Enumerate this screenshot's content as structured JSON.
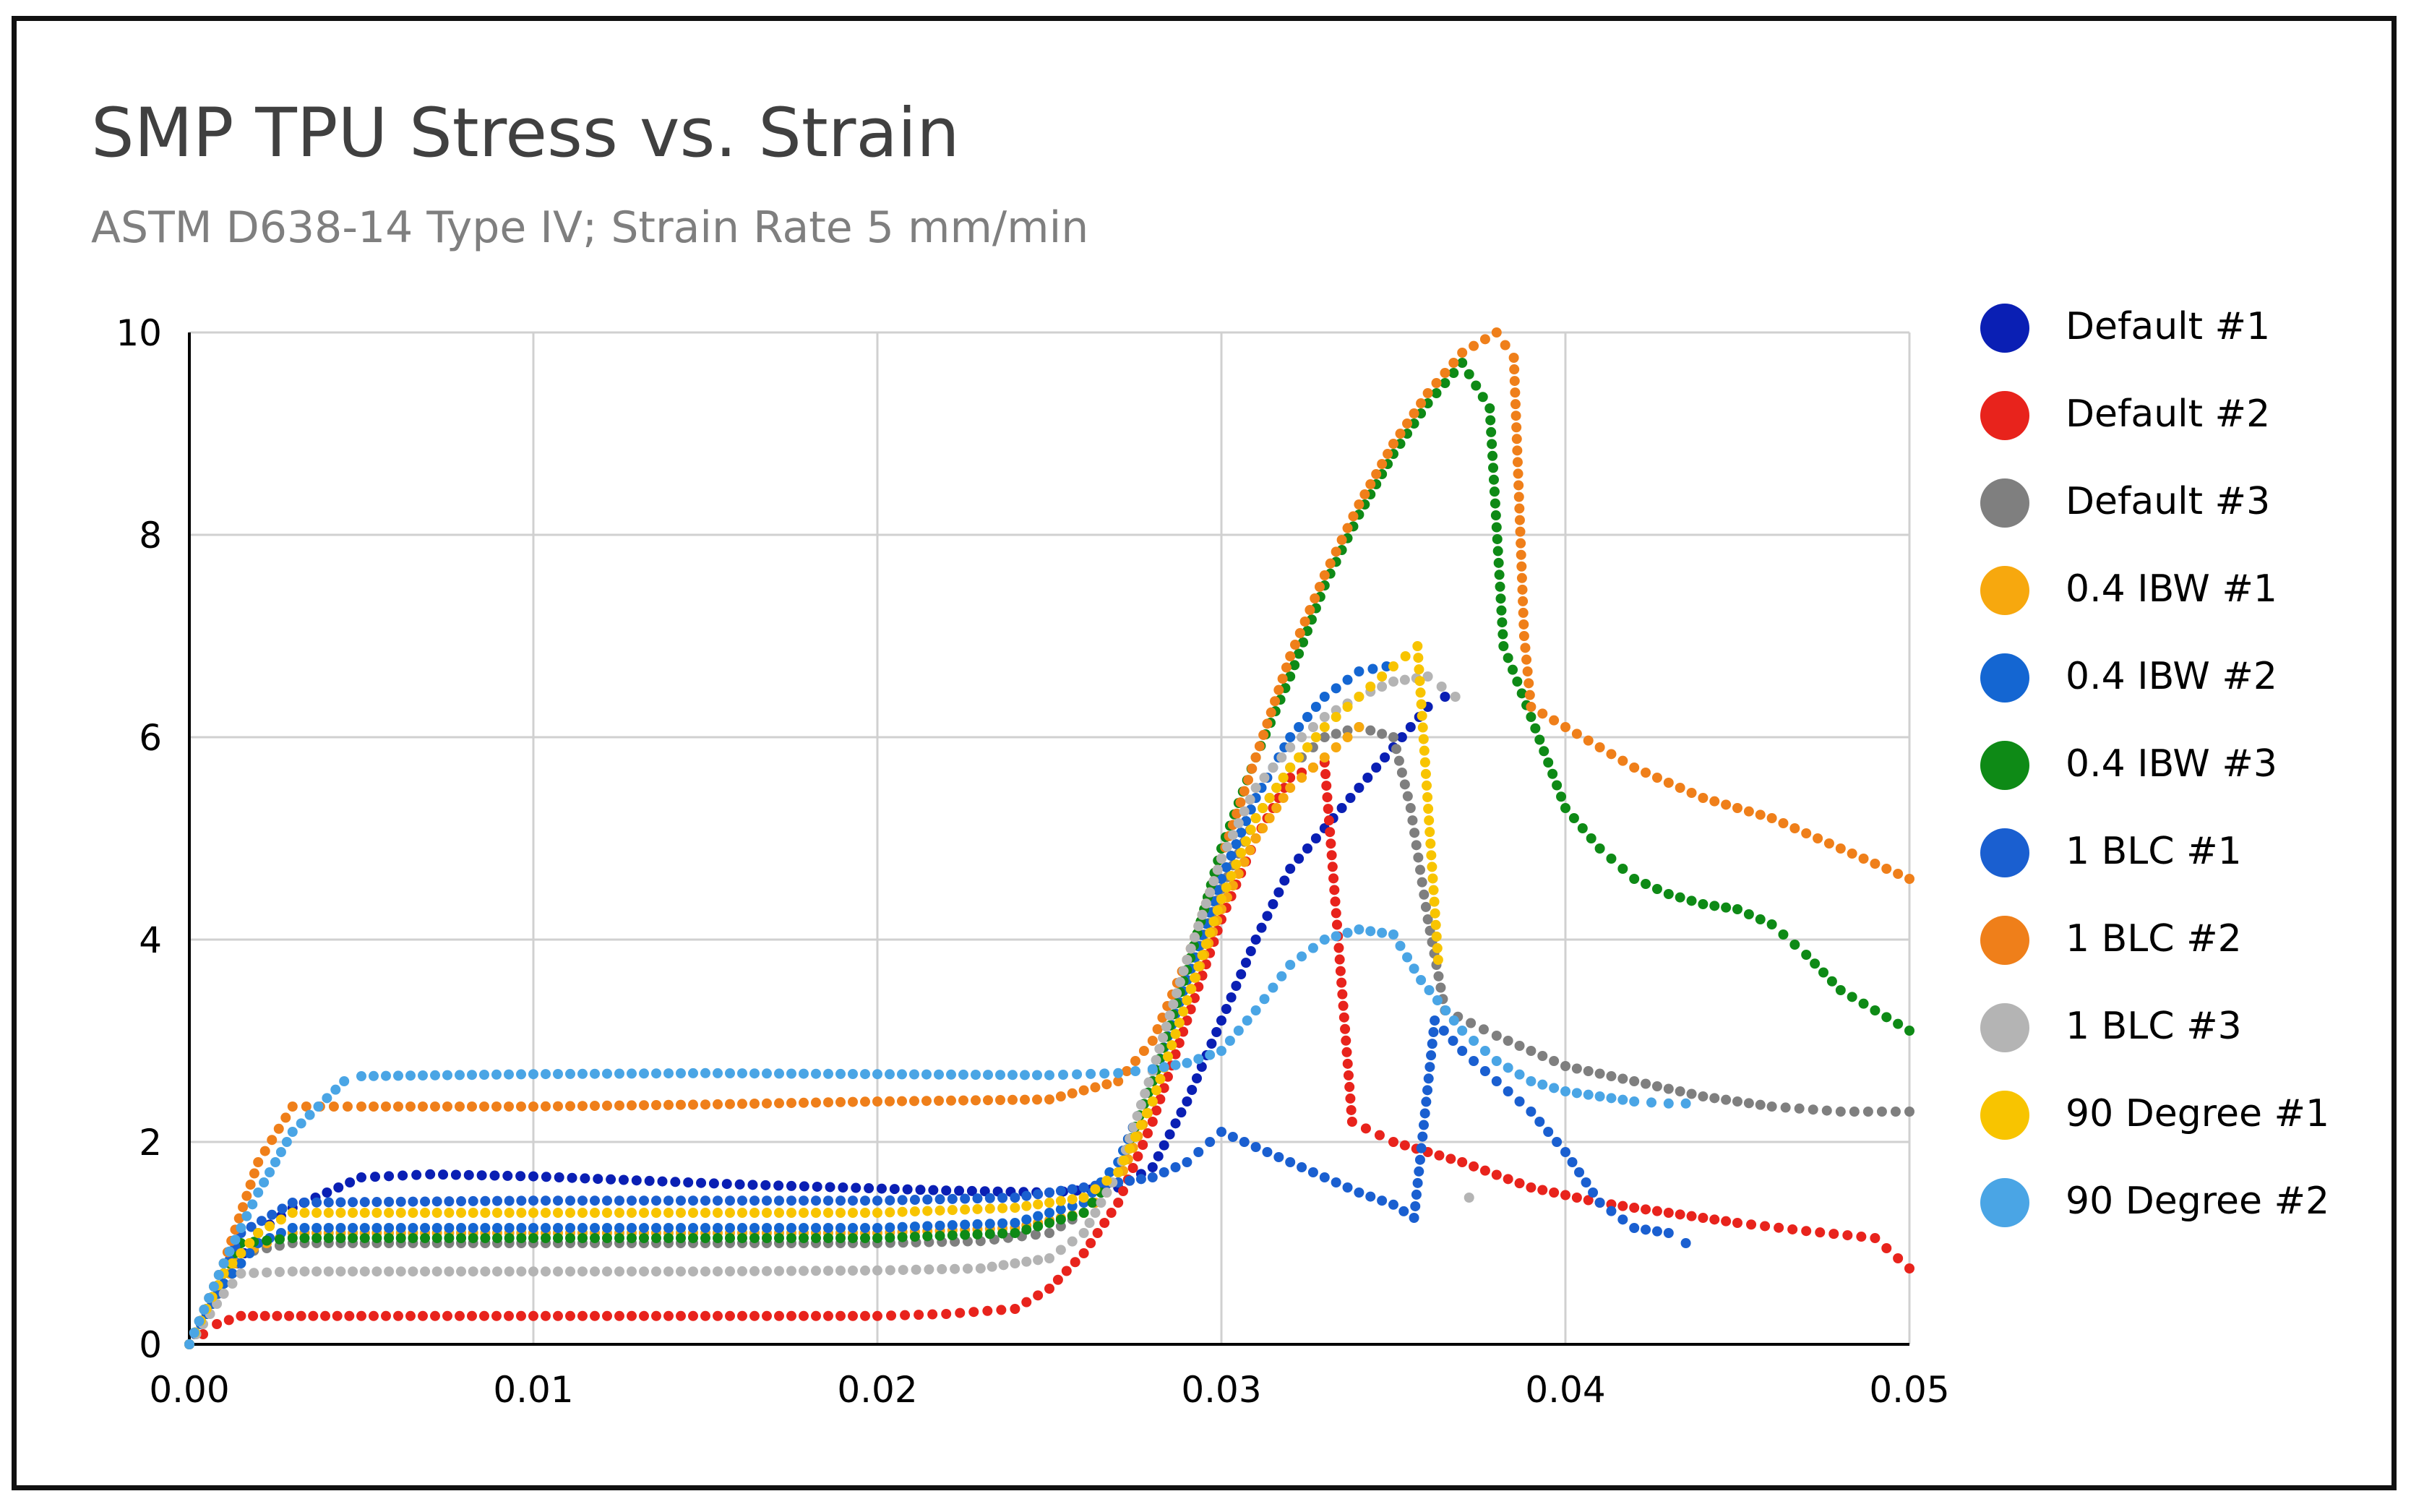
{
  "chart_data": {
    "type": "scatter",
    "title": "SMP TPU Stress vs. Strain",
    "subtitle": "ASTM D638-14 Type IV; Strain Rate 5 mm/min",
    "xlabel": "",
    "ylabel": "",
    "xlim": [
      0,
      0.05
    ],
    "ylim": [
      0,
      10
    ],
    "xticks": [
      "0.00",
      "0.01",
      "0.02",
      "0.03",
      "0.04",
      "0.05"
    ],
    "yticks": [
      "0",
      "2",
      "4",
      "6",
      "8",
      "10"
    ],
    "grid": true,
    "legend_position": "right",
    "series": [
      {
        "name": "Default #1",
        "color": "#0a1fb4",
        "points": [
          [
            0,
            0
          ],
          [
            0.001,
            0.6
          ],
          [
            0.002,
            1.1
          ],
          [
            0.003,
            1.35
          ],
          [
            0.004,
            1.5
          ],
          [
            0.005,
            1.65
          ],
          [
            0.007,
            1.68
          ],
          [
            0.01,
            1.66
          ],
          [
            0.013,
            1.62
          ],
          [
            0.016,
            1.58
          ],
          [
            0.019,
            1.55
          ],
          [
            0.022,
            1.52
          ],
          [
            0.025,
            1.5
          ],
          [
            0.027,
            1.55
          ],
          [
            0.028,
            1.75
          ],
          [
            0.029,
            2.4
          ],
          [
            0.03,
            3.2
          ],
          [
            0.031,
            4.0
          ],
          [
            0.032,
            4.7
          ],
          [
            0.033,
            5.1
          ],
          [
            0.034,
            5.5
          ],
          [
            0.035,
            5.9
          ],
          [
            0.036,
            6.3
          ],
          [
            0.0365,
            6.4
          ]
        ]
      },
      {
        "name": "Default #2",
        "color": "#e8231c",
        "points": [
          [
            0,
            0
          ],
          [
            0.0008,
            0.2
          ],
          [
            0.0015,
            0.28
          ],
          [
            0.005,
            0.28
          ],
          [
            0.01,
            0.28
          ],
          [
            0.015,
            0.28
          ],
          [
            0.02,
            0.28
          ],
          [
            0.022,
            0.3
          ],
          [
            0.024,
            0.35
          ],
          [
            0.025,
            0.55
          ],
          [
            0.026,
            0.9
          ],
          [
            0.027,
            1.4
          ],
          [
            0.028,
            2.2
          ],
          [
            0.029,
            3.2
          ],
          [
            0.03,
            4.2
          ],
          [
            0.031,
            5.0
          ],
          [
            0.032,
            5.6
          ],
          [
            0.033,
            5.75
          ],
          [
            0.0338,
            2.2
          ],
          [
            0.035,
            2.0
          ],
          [
            0.037,
            1.8
          ],
          [
            0.039,
            1.55
          ],
          [
            0.041,
            1.4
          ],
          [
            0.043,
            1.3
          ],
          [
            0.045,
            1.2
          ],
          [
            0.047,
            1.12
          ],
          [
            0.049,
            1.05
          ],
          [
            0.05,
            0.75
          ]
        ]
      },
      {
        "name": "Default #3",
        "color": "#7f7f7f",
        "points": [
          [
            0,
            0
          ],
          [
            0.001,
            0.6
          ],
          [
            0.0015,
            0.9
          ],
          [
            0.003,
            1.0
          ],
          [
            0.01,
            1.0
          ],
          [
            0.015,
            1.0
          ],
          [
            0.02,
            1.0
          ],
          [
            0.023,
            1.02
          ],
          [
            0.025,
            1.1
          ],
          [
            0.026,
            1.3
          ],
          [
            0.027,
            1.7
          ],
          [
            0.028,
            2.6
          ],
          [
            0.029,
            3.6
          ],
          [
            0.03,
            4.5
          ],
          [
            0.031,
            5.2
          ],
          [
            0.032,
            5.7
          ],
          [
            0.033,
            6.0
          ],
          [
            0.034,
            6.1
          ],
          [
            0.035,
            6.0
          ],
          [
            0.0355,
            5.3
          ],
          [
            0.036,
            4.2
          ],
          [
            0.0365,
            3.3
          ],
          [
            0.038,
            3.05
          ],
          [
            0.04,
            2.75
          ],
          [
            0.042,
            2.6
          ],
          [
            0.044,
            2.45
          ],
          [
            0.046,
            2.35
          ],
          [
            0.048,
            2.3
          ],
          [
            0.05,
            2.3
          ]
        ]
      },
      {
        "name": "0.4 IBW #1",
        "color": "#f7a80e",
        "points": [
          [
            0,
            0
          ],
          [
            0.001,
            0.6
          ],
          [
            0.0015,
            0.9
          ],
          [
            0.003,
            1.1
          ],
          [
            0.01,
            1.1
          ],
          [
            0.015,
            1.1
          ],
          [
            0.02,
            1.1
          ],
          [
            0.024,
            1.15
          ],
          [
            0.026,
            1.3
          ],
          [
            0.027,
            1.6
          ],
          [
            0.028,
            2.4
          ],
          [
            0.029,
            3.4
          ],
          [
            0.03,
            4.3
          ],
          [
            0.031,
            5.0
          ],
          [
            0.032,
            5.5
          ],
          [
            0.033,
            5.8
          ],
          [
            0.034,
            6.1
          ]
        ]
      },
      {
        "name": "0.4 IBW #2",
        "color": "#1466d2",
        "points": [
          [
            0,
            0
          ],
          [
            0.001,
            0.6
          ],
          [
            0.002,
            1.0
          ],
          [
            0.003,
            1.15
          ],
          [
            0.01,
            1.15
          ],
          [
            0.015,
            1.15
          ],
          [
            0.02,
            1.15
          ],
          [
            0.024,
            1.2
          ],
          [
            0.026,
            1.4
          ],
          [
            0.027,
            1.8
          ],
          [
            0.028,
            2.6
          ],
          [
            0.029,
            3.6
          ],
          [
            0.03,
            4.6
          ],
          [
            0.031,
            5.4
          ],
          [
            0.032,
            6.0
          ],
          [
            0.033,
            6.4
          ],
          [
            0.034,
            6.65
          ],
          [
            0.0348,
            6.7
          ]
        ]
      },
      {
        "name": "0.4 IBW #3",
        "color": "#0e8a16",
        "points": [
          [
            0,
            0
          ],
          [
            0.001,
            0.7
          ],
          [
            0.0015,
            1.0
          ],
          [
            0.003,
            1.05
          ],
          [
            0.01,
            1.05
          ],
          [
            0.015,
            1.05
          ],
          [
            0.02,
            1.05
          ],
          [
            0.024,
            1.1
          ],
          [
            0.026,
            1.3
          ],
          [
            0.027,
            1.7
          ],
          [
            0.028,
            2.6
          ],
          [
            0.029,
            3.7
          ],
          [
            0.03,
            4.9
          ],
          [
            0.031,
            5.8
          ],
          [
            0.032,
            6.6
          ],
          [
            0.033,
            7.5
          ],
          [
            0.034,
            8.2
          ],
          [
            0.035,
            8.8
          ],
          [
            0.036,
            9.3
          ],
          [
            0.037,
            9.7
          ],
          [
            0.0378,
            9.25
          ],
          [
            0.0382,
            6.9
          ],
          [
            0.039,
            6.2
          ],
          [
            0.04,
            5.3
          ],
          [
            0.041,
            4.9
          ],
          [
            0.042,
            4.6
          ],
          [
            0.043,
            4.45
          ],
          [
            0.044,
            4.35
          ],
          [
            0.045,
            4.3
          ],
          [
            0.046,
            4.15
          ],
          [
            0.047,
            3.85
          ],
          [
            0.048,
            3.5
          ],
          [
            0.049,
            3.3
          ],
          [
            0.05,
            3.1
          ]
        ]
      },
      {
        "name": "1 BLC #1",
        "color": "#1a5fd0",
        "points": [
          [
            0,
            0
          ],
          [
            0.001,
            0.7
          ],
          [
            0.0015,
            1.1
          ],
          [
            0.003,
            1.4
          ],
          [
            0.01,
            1.42
          ],
          [
            0.015,
            1.42
          ],
          [
            0.02,
            1.42
          ],
          [
            0.024,
            1.45
          ],
          [
            0.026,
            1.55
          ],
          [
            0.027,
            1.6
          ],
          [
            0.028,
            1.65
          ],
          [
            0.029,
            1.8
          ],
          [
            0.03,
            2.1
          ],
          [
            0.031,
            1.95
          ],
          [
            0.032,
            1.8
          ],
          [
            0.033,
            1.65
          ],
          [
            0.034,
            1.5
          ],
          [
            0.035,
            1.38
          ],
          [
            0.0356,
            1.25
          ],
          [
            0.0362,
            3.2
          ],
          [
            0.037,
            2.9
          ],
          [
            0.038,
            2.6
          ],
          [
            0.039,
            2.3
          ],
          [
            0.04,
            1.9
          ],
          [
            0.041,
            1.4
          ],
          [
            0.042,
            1.15
          ],
          [
            0.043,
            1.1
          ],
          [
            0.0435,
            1.0
          ]
        ]
      },
      {
        "name": "1 BLC #2",
        "color": "#ef7f1a",
        "points": [
          [
            0,
            0
          ],
          [
            0.001,
            0.8
          ],
          [
            0.002,
            1.8
          ],
          [
            0.003,
            2.35
          ],
          [
            0.005,
            2.35
          ],
          [
            0.01,
            2.35
          ],
          [
            0.015,
            2.37
          ],
          [
            0.02,
            2.4
          ],
          [
            0.025,
            2.42
          ],
          [
            0.027,
            2.6
          ],
          [
            0.028,
            3.0
          ],
          [
            0.029,
            3.8
          ],
          [
            0.03,
            4.8
          ],
          [
            0.031,
            5.8
          ],
          [
            0.032,
            6.8
          ],
          [
            0.033,
            7.6
          ],
          [
            0.034,
            8.3
          ],
          [
            0.035,
            8.9
          ],
          [
            0.036,
            9.4
          ],
          [
            0.037,
            9.8
          ],
          [
            0.038,
            10.0
          ],
          [
            0.0385,
            9.75
          ],
          [
            0.0388,
            7.0
          ],
          [
            0.039,
            6.3
          ],
          [
            0.04,
            6.1
          ],
          [
            0.042,
            5.7
          ],
          [
            0.044,
            5.4
          ],
          [
            0.046,
            5.2
          ],
          [
            0.048,
            4.9
          ],
          [
            0.05,
            4.6
          ]
        ]
      },
      {
        "name": "1 BLC #3",
        "color": "#b4b4b4",
        "points": [
          [
            0,
            0
          ],
          [
            0.001,
            0.5
          ],
          [
            0.0015,
            0.7
          ],
          [
            0.003,
            0.72
          ],
          [
            0.01,
            0.72
          ],
          [
            0.015,
            0.72
          ],
          [
            0.02,
            0.73
          ],
          [
            0.023,
            0.75
          ],
          [
            0.025,
            0.85
          ],
          [
            0.026,
            1.1
          ],
          [
            0.027,
            1.7
          ],
          [
            0.028,
            2.7
          ],
          [
            0.029,
            3.8
          ],
          [
            0.03,
            4.8
          ],
          [
            0.031,
            5.5
          ],
          [
            0.032,
            5.9
          ],
          [
            0.033,
            6.2
          ],
          [
            0.034,
            6.4
          ],
          [
            0.035,
            6.55
          ],
          [
            0.036,
            6.6
          ],
          [
            0.0368,
            6.4
          ],
          [
            0.0372,
            1.45
          ]
        ]
      },
      {
        "name": "90 Degree #1",
        "color": "#f8c400",
        "points": [
          [
            0,
            0
          ],
          [
            0.001,
            0.7
          ],
          [
            0.002,
            1.1
          ],
          [
            0.003,
            1.3
          ],
          [
            0.01,
            1.3
          ],
          [
            0.015,
            1.3
          ],
          [
            0.02,
            1.3
          ],
          [
            0.024,
            1.35
          ],
          [
            0.026,
            1.45
          ],
          [
            0.027,
            1.7
          ],
          [
            0.028,
            2.4
          ],
          [
            0.029,
            3.4
          ],
          [
            0.03,
            4.4
          ],
          [
            0.031,
            5.2
          ],
          [
            0.032,
            5.7
          ],
          [
            0.033,
            6.1
          ],
          [
            0.034,
            6.4
          ],
          [
            0.035,
            6.7
          ],
          [
            0.0357,
            6.9
          ],
          [
            0.0363,
            3.8
          ]
        ]
      },
      {
        "name": "90 Degree #2",
        "color": "#4aa5e5",
        "points": [
          [
            0,
            0
          ],
          [
            0.001,
            0.8
          ],
          [
            0.002,
            1.5
          ],
          [
            0.003,
            2.1
          ],
          [
            0.0045,
            2.6
          ],
          [
            0.005,
            2.65
          ],
          [
            0.01,
            2.67
          ],
          [
            0.015,
            2.68
          ],
          [
            0.02,
            2.67
          ],
          [
            0.025,
            2.66
          ],
          [
            0.027,
            2.68
          ],
          [
            0.028,
            2.72
          ],
          [
            0.029,
            2.78
          ],
          [
            0.03,
            2.9
          ],
          [
            0.031,
            3.3
          ],
          [
            0.032,
            3.75
          ],
          [
            0.033,
            4.0
          ],
          [
            0.034,
            4.1
          ],
          [
            0.035,
            4.05
          ],
          [
            0.0358,
            3.6
          ],
          [
            0.037,
            3.1
          ],
          [
            0.038,
            2.8
          ],
          [
            0.039,
            2.6
          ],
          [
            0.04,
            2.5
          ],
          [
            0.041,
            2.45
          ],
          [
            0.042,
            2.4
          ],
          [
            0.043,
            2.38
          ],
          [
            0.0435,
            2.38
          ]
        ]
      }
    ]
  }
}
